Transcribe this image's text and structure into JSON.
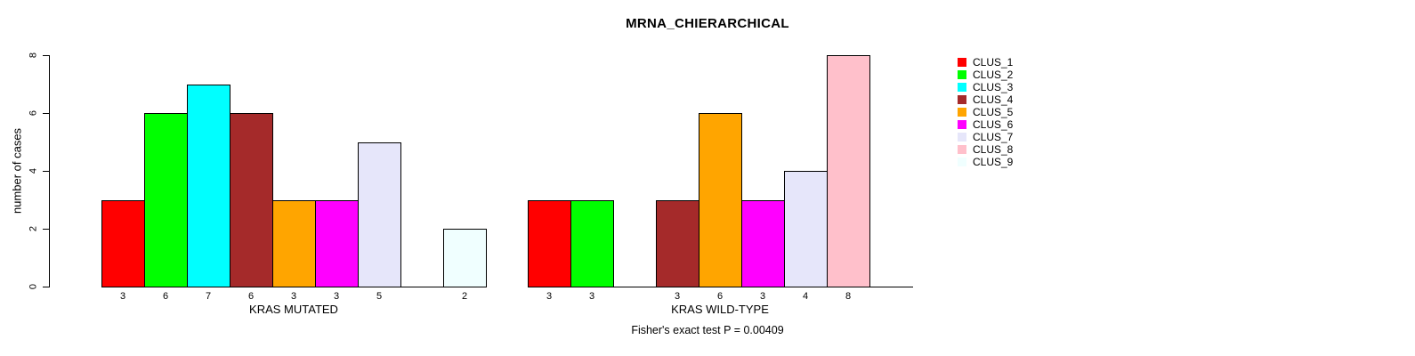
{
  "chart_data": {
    "type": "bar",
    "title": "MRNA_CHIERARCHICAL",
    "ylabel": "number of cases",
    "xlabel": "",
    "ylim": [
      0,
      8
    ],
    "yticks": [
      0,
      2,
      4,
      6,
      8
    ],
    "grid": false,
    "show_value_labels": true,
    "legend_position": "right",
    "annotation": "Fisher's exact test P = 0.00409",
    "clusters": [
      {
        "name": "CLUS_1",
        "color": "#FF0000"
      },
      {
        "name": "CLUS_2",
        "color": "#00FF00"
      },
      {
        "name": "CLUS_3",
        "color": "#00FFFF"
      },
      {
        "name": "CLUS_4",
        "color": "#A52A2A"
      },
      {
        "name": "CLUS_5",
        "color": "#FFA500"
      },
      {
        "name": "CLUS_6",
        "color": "#FF00FF"
      },
      {
        "name": "CLUS_7",
        "color": "#E6E6FA"
      },
      {
        "name": "CLUS_8",
        "color": "#FFC0CB"
      },
      {
        "name": "CLUS_9",
        "color": "#F0FFFF"
      }
    ],
    "groups": [
      {
        "label": "KRAS MUTATED",
        "values": [
          3,
          6,
          7,
          6,
          3,
          3,
          5,
          0,
          2
        ]
      },
      {
        "label": "KRAS WILD-TYPE",
        "values": [
          3,
          3,
          0,
          3,
          6,
          3,
          4,
          8,
          0
        ]
      }
    ]
  }
}
